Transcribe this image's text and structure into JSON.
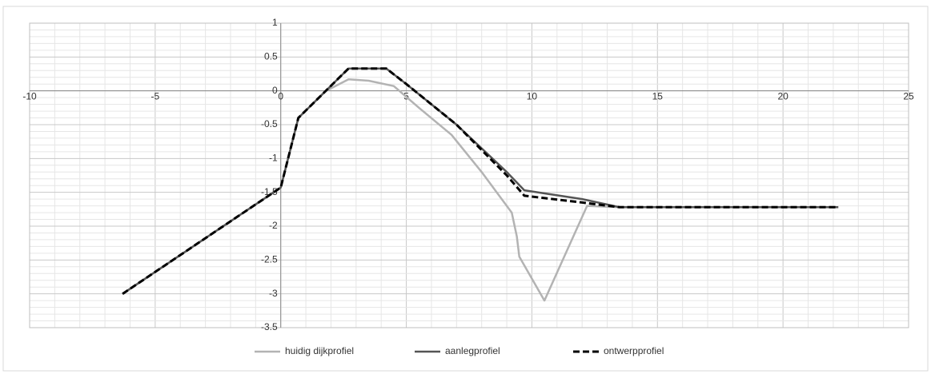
{
  "chart_data": {
    "type": "line",
    "title": "",
    "xlabel": "",
    "ylabel": "",
    "xlim": [
      -10,
      25
    ],
    "ylim": [
      -3.5,
      1
    ],
    "x_ticks": [
      -10,
      -5,
      0,
      5,
      10,
      15,
      20,
      25
    ],
    "x_tick_labels": [
      "-10",
      "-5",
      "0",
      "5",
      "10",
      "15",
      "20",
      "25"
    ],
    "y_ticks": [
      1,
      0.5,
      0,
      -0.5,
      -1,
      -1.5,
      -2,
      -2.5,
      -3,
      -3.5
    ],
    "y_tick_labels": [
      "1",
      "0.5",
      "0",
      "-0.5",
      "-1",
      "-1.5",
      "-2",
      "-2.5",
      "-3",
      "-3.5"
    ],
    "grid": true,
    "legend_position": "bottom-center",
    "series": [
      {
        "name": "huidig dijkprofiel",
        "color": "#b3b3b3",
        "dash": "solid",
        "x": [
          -6.3,
          0,
          0.7,
          1.8,
          2.7,
          3.5,
          4.5,
          5.5,
          6.8,
          8.0,
          9.2,
          9.4,
          9.5,
          10.5,
          12.2,
          13.5,
          22.2
        ],
        "y": [
          -3.0,
          -1.43,
          -0.4,
          0.0,
          0.17,
          0.15,
          0.07,
          -0.25,
          -0.65,
          -1.2,
          -1.8,
          -2.15,
          -2.45,
          -3.1,
          -1.7,
          -1.72,
          -1.72
        ]
      },
      {
        "name": "aanlegprofiel",
        "color": "#555555",
        "dash": "solid",
        "x": [
          -6.3,
          0,
          0.7,
          2.7,
          4.2,
          5.0,
          7.0,
          9.0,
          9.7,
          12.0,
          13.5,
          22.2
        ],
        "y": [
          -3.0,
          -1.43,
          -0.4,
          0.33,
          0.33,
          0.1,
          -0.5,
          -1.2,
          -1.47,
          -1.6,
          -1.72,
          -1.72
        ]
      },
      {
        "name": "ontwerpprofiel",
        "color": "#000000",
        "dash": "dashed",
        "x": [
          -6.3,
          0,
          0.7,
          2.7,
          4.2,
          5.0,
          7.0,
          9.0,
          9.7,
          12.0,
          13.5,
          22.2
        ],
        "y": [
          -3.0,
          -1.43,
          -0.4,
          0.33,
          0.33,
          0.1,
          -0.5,
          -1.25,
          -1.55,
          -1.65,
          -1.72,
          -1.72
        ]
      }
    ]
  }
}
